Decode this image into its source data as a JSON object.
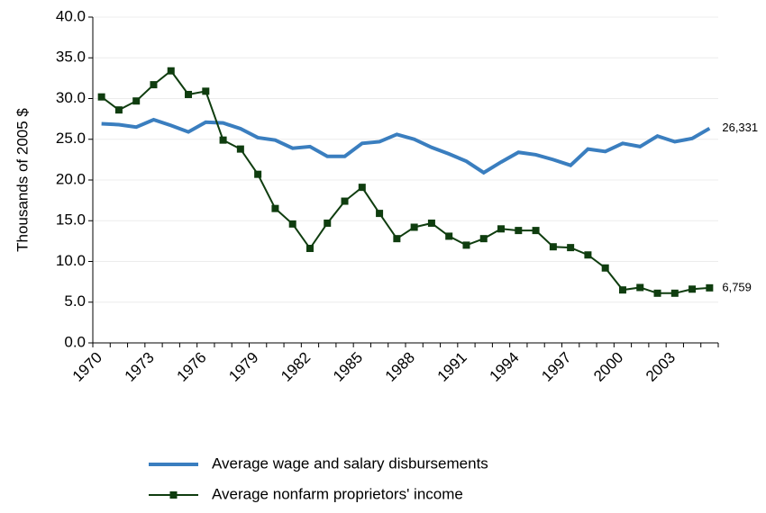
{
  "chart_data": {
    "type": "line",
    "y_label": "Thousands of 2005 $",
    "categories": [
      "1970",
      null,
      null,
      "1973",
      null,
      null,
      "1976",
      null,
      null,
      "1979",
      null,
      null,
      "1982",
      null,
      null,
      "1985",
      null,
      null,
      "1988",
      null,
      null,
      "1991",
      null,
      null,
      "1994",
      null,
      null,
      "1997",
      null,
      null,
      "2000",
      null,
      null,
      "2003",
      null,
      null
    ],
    "ylim": [
      0,
      40
    ],
    "yticks": [
      {
        "value": 0,
        "label": "0.0"
      },
      {
        "value": 5,
        "label": "5.0"
      },
      {
        "value": 10,
        "label": "10.0"
      },
      {
        "value": 15,
        "label": "15.0"
      },
      {
        "value": 20,
        "label": "20.0"
      },
      {
        "value": 25,
        "label": "25.0"
      },
      {
        "value": 30,
        "label": "30.0"
      },
      {
        "value": 35,
        "label": "35.0"
      },
      {
        "value": 40,
        "label": "40.0"
      }
    ],
    "grid": true,
    "series": [
      {
        "name": "Average wage and salary disbursements",
        "color": "#3a7ebf",
        "marker": false,
        "values": [
          26.9,
          26.8,
          26.5,
          27.4,
          26.7,
          25.9,
          27.1,
          27.0,
          26.3,
          25.2,
          24.9,
          23.9,
          24.1,
          22.9,
          22.9,
          24.5,
          24.7,
          25.6,
          25.0,
          24.0,
          23.2,
          22.3,
          20.9,
          22.2,
          23.4,
          23.1,
          22.5,
          21.8,
          23.8,
          23.5,
          24.5,
          24.1,
          25.4,
          24.7,
          25.1,
          26.331
        ],
        "value_labels": [
          null,
          null,
          null,
          null,
          null,
          null,
          null,
          null,
          null,
          null,
          null,
          null,
          null,
          null,
          null,
          null,
          null,
          null,
          null,
          null,
          null,
          null,
          null,
          null,
          null,
          null,
          null,
          null,
          null,
          null,
          null,
          null,
          null,
          null,
          null,
          "26,331"
        ]
      },
      {
        "name": "Average nonfarm proprietors' income",
        "color": "#0f3d0f",
        "marker": true,
        "values": [
          30.2,
          28.6,
          29.7,
          31.7,
          33.4,
          30.5,
          30.9,
          24.9,
          23.8,
          20.7,
          16.5,
          14.6,
          11.6,
          14.7,
          17.4,
          19.1,
          15.9,
          12.8,
          14.2,
          14.7,
          13.1,
          12.0,
          12.8,
          14.0,
          13.8,
          13.8,
          11.8,
          11.7,
          10.8,
          9.2,
          6.5,
          6.8,
          6.1,
          6.1,
          6.6,
          6.759
        ],
        "value_labels": [
          null,
          null,
          null,
          null,
          null,
          null,
          null,
          null,
          null,
          null,
          null,
          null,
          null,
          null,
          null,
          null,
          null,
          null,
          null,
          null,
          null,
          null,
          null,
          null,
          null,
          null,
          null,
          null,
          null,
          null,
          null,
          null,
          null,
          null,
          null,
          "6,759"
        ]
      }
    ]
  }
}
